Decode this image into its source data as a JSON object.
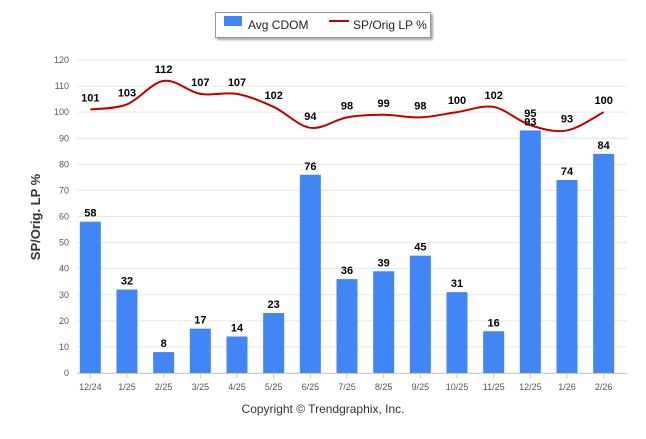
{
  "chart_data": {
    "type": "bar",
    "categories": [
      "12/24",
      "1/25",
      "2/25",
      "3/25",
      "4/25",
      "5/25",
      "6/25",
      "7/25",
      "8/25",
      "9/25",
      "10/25",
      "11/25",
      "12/25",
      "1/26",
      "2/26"
    ],
    "series": [
      {
        "name": "Avg CDOM",
        "kind": "bar",
        "values": [
          58,
          32,
          8,
          17,
          14,
          23,
          76,
          36,
          39,
          45,
          31,
          16,
          93,
          74,
          84
        ]
      },
      {
        "name": "SP/Orig LP %",
        "kind": "line",
        "values": [
          101,
          103,
          112,
          107,
          107,
          102,
          94,
          98,
          99,
          98,
          100,
          102,
          95,
          93,
          100
        ]
      }
    ],
    "title": "",
    "xlabel": "",
    "ylabel": "SP/Orig. LP %",
    "ylim": [
      0,
      120
    ],
    "yticks": [
      0,
      10,
      20,
      30,
      40,
      50,
      60,
      70,
      80,
      90,
      100,
      110,
      120
    ],
    "grid": true,
    "legend_position": "top-center",
    "colors": {
      "bar": "#4285f4",
      "line": "#c00000",
      "grid": "#e6e6e6",
      "axis_text": "#555555",
      "label_text": "#000000"
    }
  },
  "footer": {
    "copyright": "Copyright © Trendgraphix, Inc."
  }
}
